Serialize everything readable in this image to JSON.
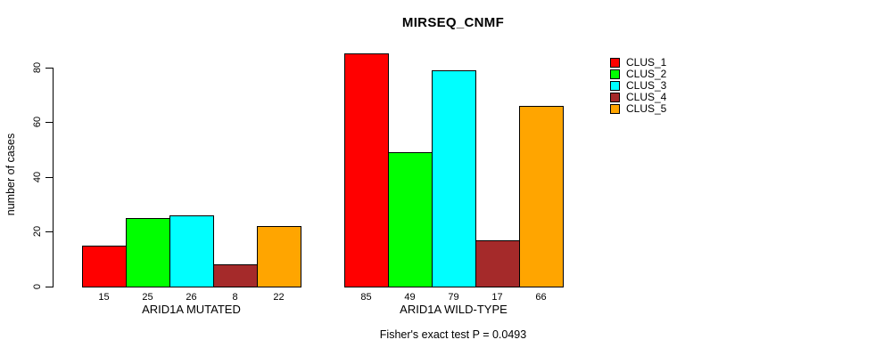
{
  "chart_data": {
    "type": "bar",
    "title": "MIRSEQ_CNMF",
    "ylabel": "number of cases",
    "xlabel": "",
    "caption": "Fisher's exact test P = 0.0493",
    "categories": [
      "ARID1A MUTATED",
      "ARID1A WILD-TYPE"
    ],
    "series": [
      {
        "name": "CLUS_1",
        "color": "#ff0000",
        "values": [
          15,
          85
        ]
      },
      {
        "name": "CLUS_2",
        "color": "#00ff00",
        "values": [
          25,
          49
        ]
      },
      {
        "name": "CLUS_3",
        "color": "#00ffff",
        "values": [
          26,
          79
        ]
      },
      {
        "name": "CLUS_4",
        "color": "#a52a2a",
        "values": [
          8,
          17
        ]
      },
      {
        "name": "CLUS_5",
        "color": "#ffa500",
        "values": [
          22,
          66
        ]
      }
    ],
    "yticks": [
      0,
      20,
      40,
      60,
      80
    ],
    "ylim": [
      0,
      88
    ],
    "show_bar_values": true,
    "grid": false,
    "bar_border_color": "#000000",
    "legend_position": "top-right",
    "background_color": "#ffffff"
  }
}
